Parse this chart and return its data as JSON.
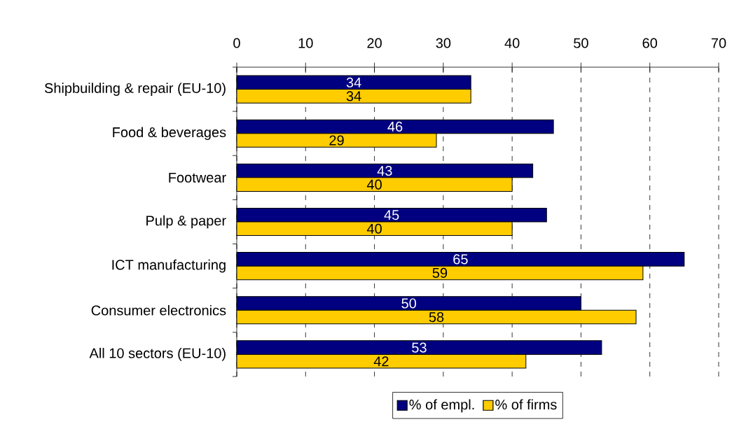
{
  "chart_data": {
    "type": "bar",
    "orientation": "horizontal",
    "categories": [
      "Shipbuilding & repair (EU-10)",
      "Food & beverages",
      "Footwear",
      "Pulp & paper",
      "ICT manufacturing",
      "Consumer electronics",
      "All 10 sectors (EU-10)"
    ],
    "series": [
      {
        "name": "% of empl.",
        "color": "#000080",
        "values": [
          34,
          46,
          43,
          45,
          65,
          50,
          53
        ]
      },
      {
        "name": "% of firms",
        "color": "#ffcc00",
        "values": [
          34,
          29,
          40,
          40,
          59,
          58,
          42
        ]
      }
    ],
    "xlim": [
      0,
      70
    ],
    "xticks": [
      0,
      10,
      20,
      30,
      40,
      50,
      60,
      70
    ],
    "grid": "x",
    "legend": "bottom",
    "data_labels": true
  }
}
